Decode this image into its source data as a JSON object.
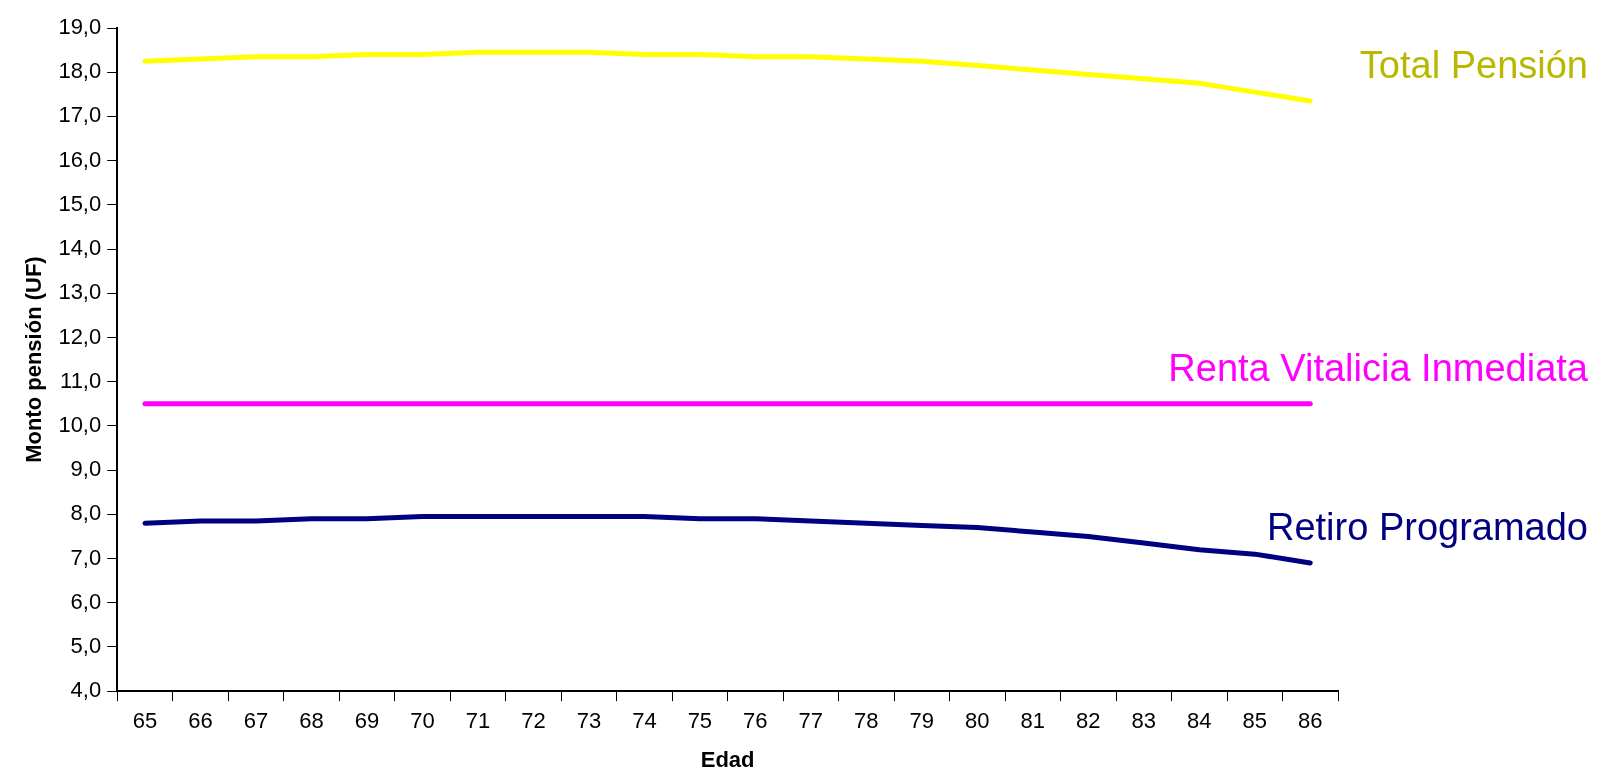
{
  "chart_data": {
    "type": "line",
    "xlabel": "Edad",
    "ylabel": "Monto pensión (UF)",
    "categories": [
      "65",
      "66",
      "67",
      "68",
      "69",
      "70",
      "71",
      "72",
      "73",
      "74",
      "75",
      "76",
      "77",
      "78",
      "79",
      "80",
      "81",
      "82",
      "83",
      "84",
      "85",
      "86"
    ],
    "series": [
      {
        "name": "Total Pensión",
        "color": "#ffff00",
        "values": [
          18.25,
          18.3,
          18.35,
          18.35,
          18.4,
          18.4,
          18.45,
          18.45,
          18.45,
          18.4,
          18.4,
          18.35,
          18.35,
          18.3,
          18.25,
          18.15,
          18.05,
          17.95,
          17.85,
          17.75,
          17.55,
          17.35
        ]
      },
      {
        "name": "Renta Vitalicia Inmediata",
        "color": "#ff00ff",
        "values": [
          10.5,
          10.5,
          10.5,
          10.5,
          10.5,
          10.5,
          10.5,
          10.5,
          10.5,
          10.5,
          10.5,
          10.5,
          10.5,
          10.5,
          10.5,
          10.5,
          10.5,
          10.5,
          10.5,
          10.5,
          10.5,
          10.5
        ]
      },
      {
        "name": "Retiro Programado",
        "color": "#000080",
        "values": [
          7.8,
          7.85,
          7.85,
          7.9,
          7.9,
          7.95,
          7.95,
          7.95,
          7.95,
          7.95,
          7.9,
          7.9,
          7.85,
          7.8,
          7.75,
          7.7,
          7.6,
          7.5,
          7.35,
          7.2,
          7.1,
          6.9
        ]
      }
    ],
    "ylim": [
      4,
      19
    ],
    "yticks": [
      {
        "value": 4,
        "label": "4,0"
      },
      {
        "value": 5,
        "label": "5,0"
      },
      {
        "value": 6,
        "label": "6,0"
      },
      {
        "value": 7,
        "label": "7,0"
      },
      {
        "value": 8,
        "label": "8,0"
      },
      {
        "value": 9,
        "label": "9,0"
      },
      {
        "value": 10,
        "label": "10,0"
      },
      {
        "value": 11,
        "label": "11,0"
      },
      {
        "value": 12,
        "label": "12,0"
      },
      {
        "value": 13,
        "label": "13,0"
      },
      {
        "value": 14,
        "label": "14,0"
      },
      {
        "value": 15,
        "label": "15,0"
      },
      {
        "value": 16,
        "label": "16,0"
      },
      {
        "value": 17,
        "label": "17,0"
      },
      {
        "value": 18,
        "label": "18,0"
      },
      {
        "value": 19,
        "label": "19,0"
      }
    ],
    "grid": false,
    "legend": false,
    "marker": "none",
    "line_style": "solid"
  }
}
